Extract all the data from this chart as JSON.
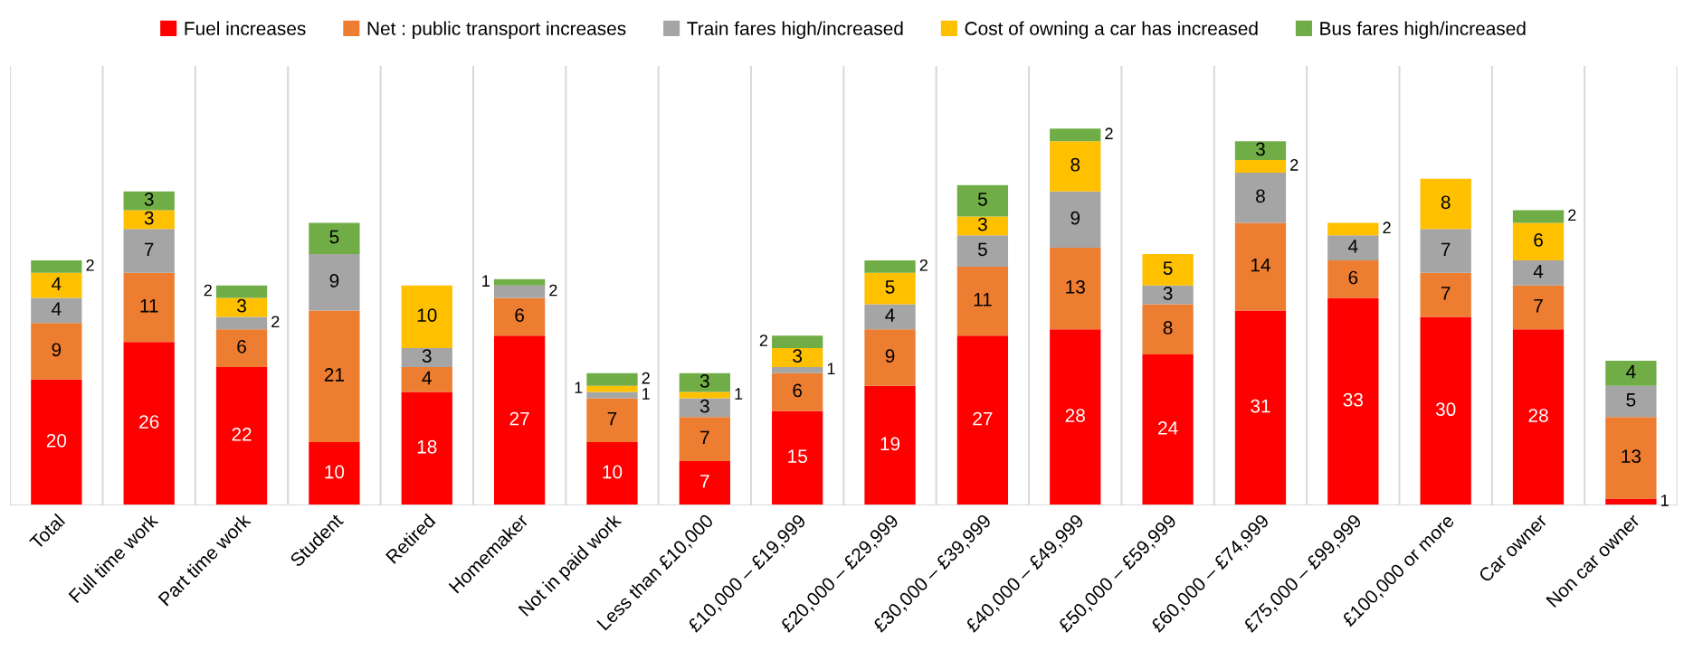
{
  "chart_data": {
    "type": "bar",
    "stacked": true,
    "data_labels": true,
    "legend": "top",
    "grid": "x",
    "tick_labels": "x",
    "ylim": [
      0,
      70
    ],
    "categories": [
      "Total",
      "Full time work",
      "Part time work",
      "Student",
      "Retired",
      "Homemaker",
      "Not in paid work",
      "Less than £10,000",
      "£10,000 – £19,999",
      "£20,000 – £29,999",
      "£30,000 – £39,999",
      "£40,000 – £49,999",
      "£50,000 – £59,999",
      "£60,000 – £74,999",
      "£75,000 – £99,999",
      "£100,000 or more",
      "Car owner",
      "Non car owner"
    ],
    "series": [
      {
        "name": "Fuel increases",
        "color": "#ff0000",
        "values": [
          20,
          26,
          22,
          10,
          18,
          27,
          10,
          7,
          15,
          19,
          27,
          28,
          24,
          31,
          33,
          30,
          28,
          1
        ]
      },
      {
        "name": "Net : public transport increases",
        "color": "#ed7d31",
        "values": [
          9,
          11,
          6,
          21,
          4,
          6,
          7,
          7,
          6,
          9,
          11,
          13,
          8,
          14,
          6,
          7,
          7,
          13
        ]
      },
      {
        "name": "Train fares high/increased",
        "color": "#a5a5a5",
        "values": [
          4,
          7,
          2,
          9,
          3,
          2,
          1,
          3,
          1,
          4,
          5,
          9,
          3,
          8,
          4,
          7,
          4,
          5
        ]
      },
      {
        "name": "Cost of owning a car has increased",
        "color": "#ffc000",
        "values": [
          4,
          3,
          3,
          null,
          10,
          null,
          1,
          1,
          3,
          5,
          3,
          8,
          5,
          2,
          2,
          8,
          6,
          null
        ]
      },
      {
        "name": "Bus fares high/increased",
        "color": "#70ad47",
        "values": [
          2,
          3,
          2,
          5,
          null,
          1,
          2,
          3,
          2,
          2,
          5,
          2,
          null,
          3,
          null,
          null,
          2,
          4
        ]
      }
    ]
  }
}
